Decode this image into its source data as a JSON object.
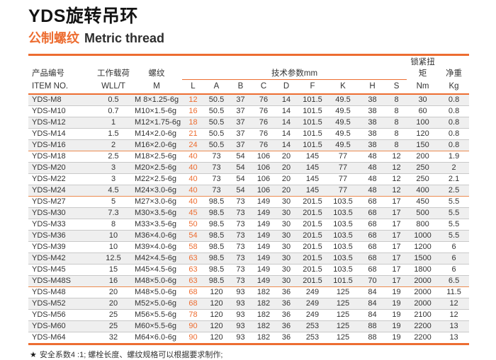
{
  "page": {
    "title": "YDS旋转吊环",
    "subtitle_cn": "公制螺纹",
    "subtitle_en": "Metric thread",
    "footnote_star": "★",
    "footnote": "安全系数4 :1; 螺栓长度、螺纹规格可以根据要求制作;"
  },
  "colors": {
    "accent_orange": "#ED6D31",
    "group_divider_orange": "#EC8B50",
    "stripe_gray": "#EFEFEF",
    "row_border_gray": "#C9C9C9",
    "text_dark": "#333333"
  },
  "table": {
    "header": {
      "item_cn": "产品编号",
      "item_en": "ITEM NO.",
      "wll_cn": "工作载荷",
      "wll_en": "WLL/T",
      "thread_cn": "螺纹",
      "thread_en": "M",
      "tech_group": "技术参数mm",
      "tech_cols": [
        "L",
        "A",
        "B",
        "C",
        "D",
        "F",
        "K",
        "H",
        "S"
      ],
      "torque_cn": "锁紧扭矩",
      "torque_unit": "Nm",
      "weight_cn": "净重",
      "weight_unit": "Kg"
    },
    "rows": [
      {
        "item": "YDS-M8",
        "wll": "0.5",
        "thread": "M 8×1.25-6g",
        "L": "12",
        "A": "50.5",
        "B": "37",
        "C": "76",
        "D": "14",
        "F": "101.5",
        "K": "49.5",
        "H": "38",
        "S": "8",
        "nm": "30",
        "kg": "0.8",
        "group_end": false
      },
      {
        "item": "YDS-M10",
        "wll": "0.7",
        "thread": "M10×1.5-6g",
        "L": "16",
        "A": "50.5",
        "B": "37",
        "C": "76",
        "D": "14",
        "F": "101.5",
        "K": "49.5",
        "H": "38",
        "S": "8",
        "nm": "60",
        "kg": "0.8",
        "group_end": false
      },
      {
        "item": "YDS-M12",
        "wll": "1",
        "thread": "M12×1.75-6g",
        "L": "18",
        "A": "50.5",
        "B": "37",
        "C": "76",
        "D": "14",
        "F": "101.5",
        "K": "49.5",
        "H": "38",
        "S": "8",
        "nm": "100",
        "kg": "0.8",
        "group_end": false
      },
      {
        "item": "YDS-M14",
        "wll": "1.5",
        "thread": "M14×2.0-6g",
        "L": "21",
        "A": "50.5",
        "B": "37",
        "C": "76",
        "D": "14",
        "F": "101.5",
        "K": "49.5",
        "H": "38",
        "S": "8",
        "nm": "120",
        "kg": "0.8",
        "group_end": false
      },
      {
        "item": "YDS-M16",
        "wll": "2",
        "thread": "M16×2.0-6g",
        "L": "24",
        "A": "50.5",
        "B": "37",
        "C": "76",
        "D": "14",
        "F": "101.5",
        "K": "49.5",
        "H": "38",
        "S": "8",
        "nm": "150",
        "kg": "0.8",
        "group_end": true
      },
      {
        "item": "YDS-M18",
        "wll": "2.5",
        "thread": "M18×2.5-6g",
        "L": "40",
        "A": "73",
        "B": "54",
        "C": "106",
        "D": "20",
        "F": "145",
        "K": "77",
        "H": "48",
        "S": "12",
        "nm": "200",
        "kg": "1.9",
        "group_end": false
      },
      {
        "item": "YDS-M20",
        "wll": "3",
        "thread": "M20×2.5-6g",
        "L": "40",
        "A": "73",
        "B": "54",
        "C": "106",
        "D": "20",
        "F": "145",
        "K": "77",
        "H": "48",
        "S": "12",
        "nm": "250",
        "kg": "2",
        "group_end": false
      },
      {
        "item": "YDS-M22",
        "wll": "3",
        "thread": "M22×2.5-6g",
        "L": "40",
        "A": "73",
        "B": "54",
        "C": "106",
        "D": "20",
        "F": "145",
        "K": "77",
        "H": "48",
        "S": "12",
        "nm": "250",
        "kg": "2.1",
        "group_end": false
      },
      {
        "item": "YDS-M24",
        "wll": "4.5",
        "thread": "M24×3.0-6g",
        "L": "40",
        "A": "73",
        "B": "54",
        "C": "106",
        "D": "20",
        "F": "145",
        "K": "77",
        "H": "48",
        "S": "12",
        "nm": "400",
        "kg": "2.5",
        "group_end": true
      },
      {
        "item": "YDS-M27",
        "wll": "5",
        "thread": "M27×3.0-6g",
        "L": "40",
        "A": "98.5",
        "B": "73",
        "C": "149",
        "D": "30",
        "F": "201.5",
        "K": "103.5",
        "H": "68",
        "S": "17",
        "nm": "450",
        "kg": "5.5",
        "group_end": false
      },
      {
        "item": "YDS-M30",
        "wll": "7.3",
        "thread": "M30×3.5-6g",
        "L": "45",
        "A": "98.5",
        "B": "73",
        "C": "149",
        "D": "30",
        "F": "201.5",
        "K": "103.5",
        "H": "68",
        "S": "17",
        "nm": "500",
        "kg": "5.5",
        "group_end": false
      },
      {
        "item": "YDS-M33",
        "wll": "8",
        "thread": "M33×3.5-6g",
        "L": "50",
        "A": "98.5",
        "B": "73",
        "C": "149",
        "D": "30",
        "F": "201.5",
        "K": "103.5",
        "H": "68",
        "S": "17",
        "nm": "800",
        "kg": "5.5",
        "group_end": false
      },
      {
        "item": "YDS-M36",
        "wll": "10",
        "thread": "M36×4.0-6g",
        "L": "54",
        "A": "98.5",
        "B": "73",
        "C": "149",
        "D": "30",
        "F": "201.5",
        "K": "103.5",
        "H": "68",
        "S": "17",
        "nm": "1000",
        "kg": "5.5",
        "group_end": false
      },
      {
        "item": "YDS-M39",
        "wll": "10",
        "thread": "M39×4.0-6g",
        "L": "58",
        "A": "98.5",
        "B": "73",
        "C": "149",
        "D": "30",
        "F": "201.5",
        "K": "103.5",
        "H": "68",
        "S": "17",
        "nm": "1200",
        "kg": "6",
        "group_end": false
      },
      {
        "item": "YDS-M42",
        "wll": "12.5",
        "thread": "M42×4.5-6g",
        "L": "63",
        "A": "98.5",
        "B": "73",
        "C": "149",
        "D": "30",
        "F": "201.5",
        "K": "103.5",
        "H": "68",
        "S": "17",
        "nm": "1500",
        "kg": "6",
        "group_end": false
      },
      {
        "item": "YDS-M45",
        "wll": "15",
        "thread": "M45×4.5-6g",
        "L": "63",
        "A": "98.5",
        "B": "73",
        "C": "149",
        "D": "30",
        "F": "201.5",
        "K": "103.5",
        "H": "68",
        "S": "17",
        "nm": "1800",
        "kg": "6",
        "group_end": false
      },
      {
        "item": "YDS-M48S",
        "wll": "16",
        "thread": "M48×5.0-6g",
        "L": "63",
        "A": "98.5",
        "B": "73",
        "C": "149",
        "D": "30",
        "F": "201.5",
        "K": "101.5",
        "H": "70",
        "S": "17",
        "nm": "2000",
        "kg": "6.5",
        "group_end": true
      },
      {
        "item": "YDS-M48",
        "wll": "20",
        "thread": "M48×5.0-6g",
        "L": "68",
        "A": "120",
        "B": "93",
        "C": "182",
        "D": "36",
        "F": "249",
        "K": "125",
        "H": "84",
        "S": "19",
        "nm": "2000",
        "kg": "11.5",
        "group_end": false
      },
      {
        "item": "YDS-M52",
        "wll": "20",
        "thread": "M52×5.0-6g",
        "L": "68",
        "A": "120",
        "B": "93",
        "C": "182",
        "D": "36",
        "F": "249",
        "K": "125",
        "H": "84",
        "S": "19",
        "nm": "2000",
        "kg": "12",
        "group_end": false
      },
      {
        "item": "YDS-M56",
        "wll": "25",
        "thread": "M56×5.5-6g",
        "L": "78",
        "A": "120",
        "B": "93",
        "C": "182",
        "D": "36",
        "F": "249",
        "K": "125",
        "H": "84",
        "S": "19",
        "nm": "2100",
        "kg": "12",
        "group_end": false
      },
      {
        "item": "YDS-M60",
        "wll": "25",
        "thread": "M60×5.5-6g",
        "L": "90",
        "A": "120",
        "B": "93",
        "C": "182",
        "D": "36",
        "F": "253",
        "K": "125",
        "H": "88",
        "S": "19",
        "nm": "2200",
        "kg": "13",
        "group_end": false
      },
      {
        "item": "YDS-M64",
        "wll": "32",
        "thread": "M64×6.0-6g",
        "L": "90",
        "A": "120",
        "B": "93",
        "C": "182",
        "D": "36",
        "F": "253",
        "K": "125",
        "H": "88",
        "S": "19",
        "nm": "2200",
        "kg": "13",
        "group_end": false
      }
    ]
  }
}
